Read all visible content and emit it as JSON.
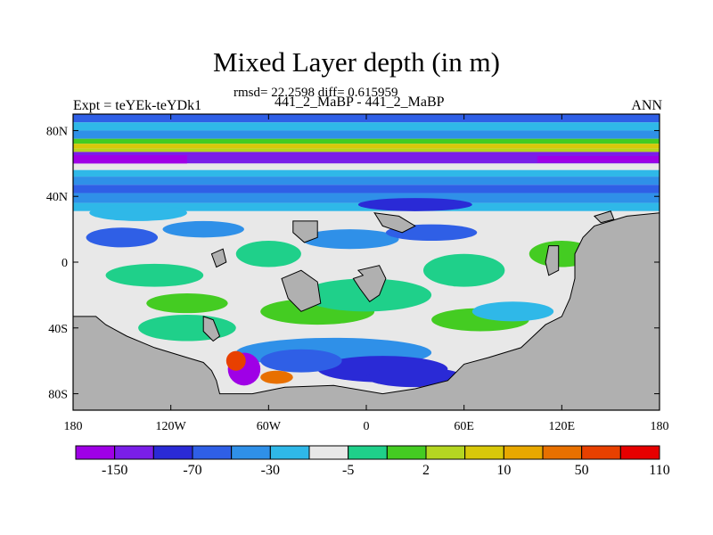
{
  "title": "Mixed Layer depth (in m)",
  "stats_line": "rmsd= 22.2598 diff= 0.615959",
  "left_label": "Expt = teYEk-teYDk1",
  "center_label": "441_2_MaBP - 441_2_MaBP",
  "right_label": "ANN",
  "chart_data": {
    "type": "heatmap",
    "x_ticks": [
      "180",
      "120W",
      "60W",
      "0",
      "60E",
      "120E",
      "180"
    ],
    "x_tick_values": [
      -180,
      -120,
      -60,
      0,
      60,
      120,
      180
    ],
    "y_ticks": [
      "80N",
      "40N",
      "0",
      "40S",
      "80S"
    ],
    "y_tick_values": [
      80,
      40,
      0,
      -40,
      -80
    ],
    "xlim": [
      -180,
      180
    ],
    "ylim": [
      -90,
      90
    ],
    "colorbar": {
      "colors": [
        "#9f00e6",
        "#7a1ee8",
        "#2a2ad6",
        "#2f5fe6",
        "#2f90e8",
        "#2fb8e8",
        "#e8e8e8",
        "#1fd08a",
        "#44cc22",
        "#b4d621",
        "#d8c80a",
        "#e8a800",
        "#e87000",
        "#e84000",
        "#e60000"
      ],
      "labels": [
        "-150",
        "-70",
        "-30",
        "-5",
        "2",
        "10",
        "50",
        "110"
      ]
    },
    "land_color": "#b0b0b0"
  }
}
